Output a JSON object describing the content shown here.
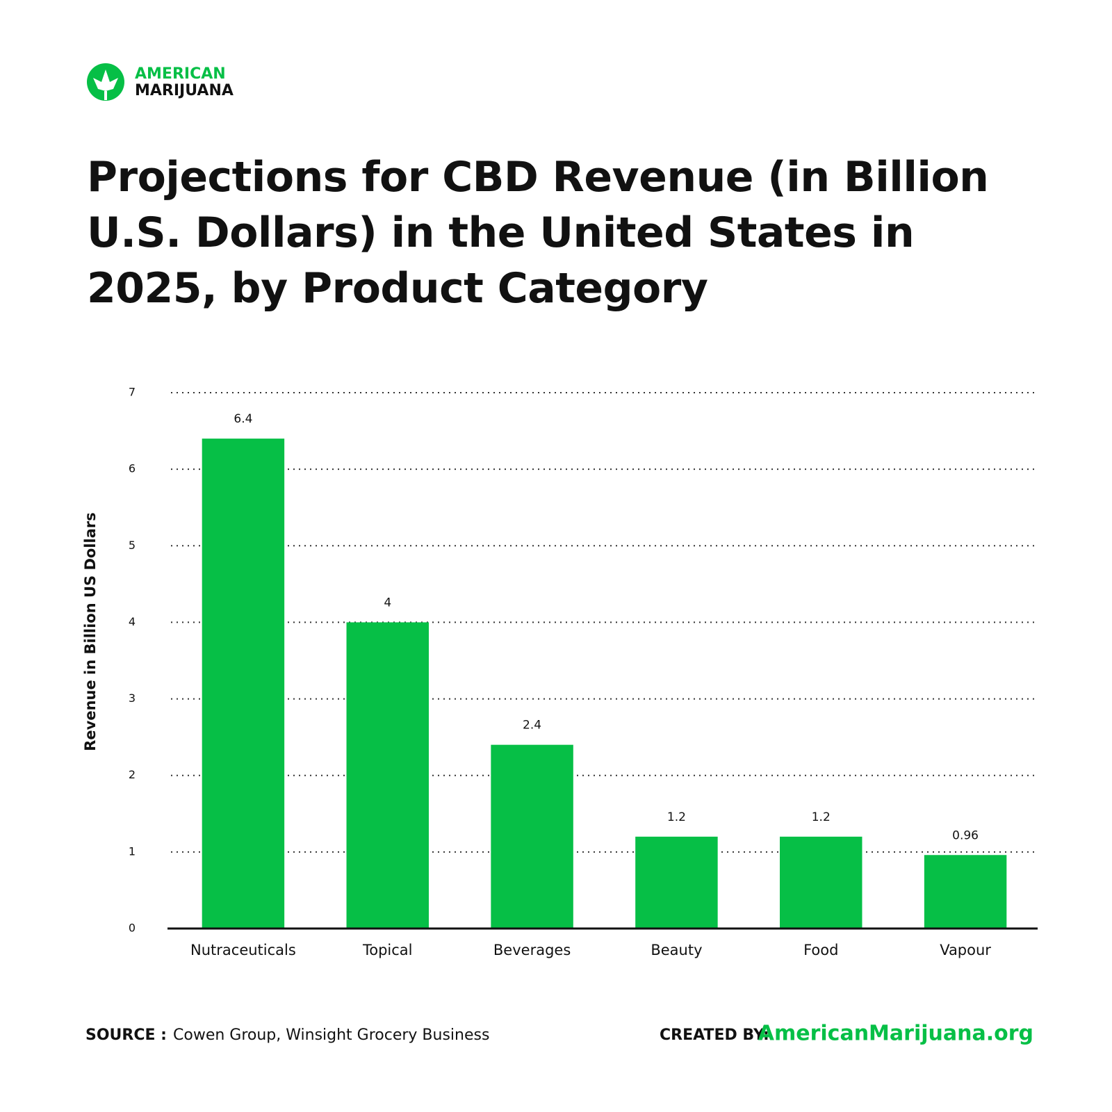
{
  "logo": {
    "line1": "AMERICAN",
    "line2": "MARIJUANA"
  },
  "chart_data": {
    "type": "bar",
    "title": "Projections for CBD Revenue (in Billion U.S. Dollars) in the United States in 2025, by Product Category",
    "y_label": "Revenue in Billion US Dollars",
    "categories": [
      "Nutraceuticals",
      "Topical",
      "Beverages",
      "Beauty",
      "Food",
      "Vapour"
    ],
    "values": [
      6.4,
      4,
      2.4,
      1.2,
      1.2,
      0.96
    ],
    "color": "#06bf46",
    "ylim": [
      0,
      7
    ],
    "yticks": [
      0,
      1,
      2,
      3,
      4,
      5,
      6,
      7
    ],
    "grid": true,
    "value_labels_shown": true
  },
  "footer": {
    "source_label": "SOURCE :",
    "source": "Cowen Group, Winsight Grocery Business",
    "created_label": "CREATED BY:",
    "created_by": "AmericanMarijuana.org"
  }
}
